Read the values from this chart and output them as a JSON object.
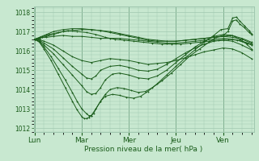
{
  "title": "Pression niveau de la mer( hPa )",
  "bg_color": "#c8e8d0",
  "grid_color": "#a0c8b0",
  "line_color": "#1a5c1a",
  "ylim": [
    1011.8,
    1018.3
  ],
  "yticks": [
    1012,
    1013,
    1014,
    1015,
    1016,
    1017,
    1018
  ],
  "xtick_labels": [
    "Lun",
    "Mar",
    "Mer",
    "Jeu",
    "Ven"
  ],
  "xtick_positions": [
    0.0,
    1.0,
    2.0,
    3.0,
    4.0
  ],
  "xlim": [
    -0.02,
    4.65
  ],
  "series": [
    [
      0.0,
      1016.6,
      0.08,
      1016.65,
      0.16,
      1016.7,
      0.25,
      1016.7,
      0.4,
      1016.75,
      0.6,
      1016.8,
      0.8,
      1016.75,
      1.0,
      1016.75,
      1.2,
      1016.7,
      1.4,
      1016.65,
      1.6,
      1016.65,
      1.8,
      1016.65,
      2.0,
      1016.6,
      2.2,
      1016.55,
      2.4,
      1016.5,
      2.6,
      1016.45,
      2.8,
      1016.4,
      3.0,
      1016.4,
      3.2,
      1016.45,
      3.4,
      1016.5,
      3.6,
      1016.55,
      3.8,
      1016.6,
      4.0,
      1016.65,
      4.2,
      1016.6,
      4.4,
      1016.5,
      4.6,
      1016.35
    ],
    [
      0.0,
      1016.6,
      0.1,
      1016.58,
      0.2,
      1016.5,
      0.4,
      1016.3,
      0.6,
      1016.0,
      0.8,
      1015.7,
      1.0,
      1015.5,
      1.2,
      1015.4,
      1.4,
      1015.5,
      1.6,
      1015.6,
      1.8,
      1015.55,
      2.0,
      1015.5,
      2.2,
      1015.4,
      2.4,
      1015.3,
      2.6,
      1015.35,
      2.8,
      1015.4,
      3.0,
      1015.5,
      3.2,
      1015.65,
      3.4,
      1015.8,
      3.6,
      1015.95,
      3.8,
      1016.05,
      4.0,
      1016.15,
      4.2,
      1016.1,
      4.4,
      1015.9,
      4.6,
      1015.6
    ],
    [
      0.0,
      1016.6,
      0.1,
      1016.55,
      0.2,
      1016.4,
      0.4,
      1016.1,
      0.6,
      1015.65,
      0.8,
      1015.2,
      1.0,
      1014.8,
      1.1,
      1014.6,
      1.2,
      1014.55,
      1.3,
      1014.7,
      1.4,
      1015.0,
      1.6,
      1015.2,
      1.8,
      1015.25,
      2.0,
      1015.15,
      2.2,
      1015.0,
      2.4,
      1014.95,
      2.6,
      1015.05,
      2.8,
      1015.3,
      3.0,
      1015.6,
      3.2,
      1015.9,
      3.4,
      1016.15,
      3.6,
      1016.35,
      3.8,
      1016.5,
      4.0,
      1016.55,
      4.2,
      1016.5,
      4.4,
      1016.3,
      4.6,
      1016.05
    ],
    [
      0.0,
      1016.6,
      0.1,
      1016.5,
      0.2,
      1016.3,
      0.4,
      1015.85,
      0.6,
      1015.3,
      0.8,
      1014.75,
      1.0,
      1014.2,
      1.1,
      1013.9,
      1.2,
      1013.75,
      1.3,
      1013.8,
      1.4,
      1014.1,
      1.5,
      1014.5,
      1.65,
      1014.8,
      1.8,
      1014.85,
      2.0,
      1014.75,
      2.2,
      1014.6,
      2.4,
      1014.55,
      2.6,
      1014.7,
      2.8,
      1015.0,
      3.0,
      1015.4,
      3.2,
      1015.8,
      3.4,
      1016.2,
      3.6,
      1016.5,
      3.8,
      1016.75,
      4.0,
      1016.85,
      4.2,
      1016.8,
      4.35,
      1016.6,
      4.5,
      1016.35,
      4.6,
      1016.1
    ],
    [
      0.0,
      1016.6,
      0.1,
      1016.48,
      0.2,
      1016.2,
      0.35,
      1015.7,
      0.5,
      1015.1,
      0.65,
      1014.5,
      0.8,
      1013.85,
      0.9,
      1013.4,
      1.0,
      1013.0,
      1.1,
      1012.75,
      1.15,
      1012.65,
      1.2,
      1012.65,
      1.25,
      1012.75,
      1.3,
      1013.0,
      1.4,
      1013.4,
      1.5,
      1013.75,
      1.6,
      1014.0,
      1.75,
      1014.1,
      1.9,
      1014.05,
      2.05,
      1013.95,
      2.2,
      1013.85,
      2.35,
      1013.9,
      2.5,
      1014.1,
      2.7,
      1014.45,
      2.9,
      1014.85,
      3.1,
      1015.3,
      3.3,
      1015.75,
      3.5,
      1016.1,
      3.7,
      1016.45,
      3.85,
      1016.7,
      4.0,
      1016.8,
      4.1,
      1017.0,
      4.2,
      1017.55,
      4.28,
      1017.6,
      4.35,
      1017.4,
      4.45,
      1017.2,
      4.55,
      1016.95,
      4.6,
      1016.85
    ],
    [
      0.0,
      1016.6,
      0.1,
      1016.45,
      0.2,
      1016.1,
      0.35,
      1015.5,
      0.5,
      1014.8,
      0.65,
      1014.1,
      0.8,
      1013.4,
      0.9,
      1012.95,
      1.0,
      1012.6,
      1.05,
      1012.5,
      1.1,
      1012.5,
      1.15,
      1012.55,
      1.2,
      1012.65,
      1.3,
      1013.0,
      1.4,
      1013.4,
      1.5,
      1013.65,
      1.65,
      1013.75,
      1.8,
      1013.7,
      1.95,
      1013.6,
      2.1,
      1013.55,
      2.25,
      1013.65,
      2.4,
      1013.9,
      2.6,
      1014.3,
      2.8,
      1014.75,
      3.0,
      1015.2,
      3.2,
      1015.65,
      3.4,
      1016.05,
      3.6,
      1016.45,
      3.8,
      1016.8,
      3.95,
      1017.1,
      4.1,
      1017.15,
      4.2,
      1017.7,
      4.28,
      1017.75,
      4.35,
      1017.55,
      4.45,
      1017.3,
      4.55,
      1017.05,
      4.6,
      1016.9
    ],
    [
      0.0,
      1016.6,
      0.1,
      1016.65,
      0.25,
      1016.75,
      0.4,
      1016.85,
      0.6,
      1017.0,
      0.8,
      1017.05,
      1.0,
      1017.1,
      1.2,
      1017.1,
      1.4,
      1017.05,
      1.6,
      1017.0,
      1.8,
      1016.9,
      2.0,
      1016.8,
      2.2,
      1016.7,
      2.4,
      1016.6,
      2.6,
      1016.55,
      2.8,
      1016.5,
      3.0,
      1016.5,
      3.2,
      1016.55,
      3.4,
      1016.6,
      3.6,
      1016.65,
      3.8,
      1016.7,
      4.0,
      1016.75,
      4.2,
      1016.7,
      4.4,
      1016.6,
      4.6,
      1016.4
    ],
    [
      0.0,
      1016.6,
      0.1,
      1016.7,
      0.25,
      1016.85,
      0.4,
      1017.0,
      0.6,
      1017.1,
      0.8,
      1017.15,
      1.0,
      1017.15,
      1.2,
      1017.1,
      1.4,
      1017.05,
      1.6,
      1016.95,
      1.8,
      1016.85,
      2.0,
      1016.75,
      2.2,
      1016.65,
      2.4,
      1016.55,
      2.6,
      1016.5,
      2.8,
      1016.5,
      3.0,
      1016.5,
      3.2,
      1016.55,
      3.4,
      1016.6,
      3.6,
      1016.65,
      3.8,
      1016.7,
      4.0,
      1016.75,
      4.15,
      1016.8,
      4.25,
      1016.75,
      4.4,
      1016.65,
      4.6,
      1016.45
    ],
    [
      0.0,
      1016.6,
      0.15,
      1016.72,
      0.3,
      1016.85,
      0.5,
      1016.95,
      0.7,
      1017.05,
      0.9,
      1017.0,
      1.1,
      1016.95,
      1.3,
      1016.85,
      1.5,
      1016.7,
      1.7,
      1016.6,
      1.9,
      1016.55,
      2.1,
      1016.5,
      2.3,
      1016.45,
      2.5,
      1016.4,
      2.7,
      1016.35,
      2.9,
      1016.35,
      3.1,
      1016.35,
      3.3,
      1016.4,
      3.5,
      1016.45,
      3.7,
      1016.5,
      3.9,
      1016.55,
      4.1,
      1016.6,
      4.3,
      1016.55,
      4.5,
      1016.4,
      4.6,
      1016.3
    ]
  ]
}
